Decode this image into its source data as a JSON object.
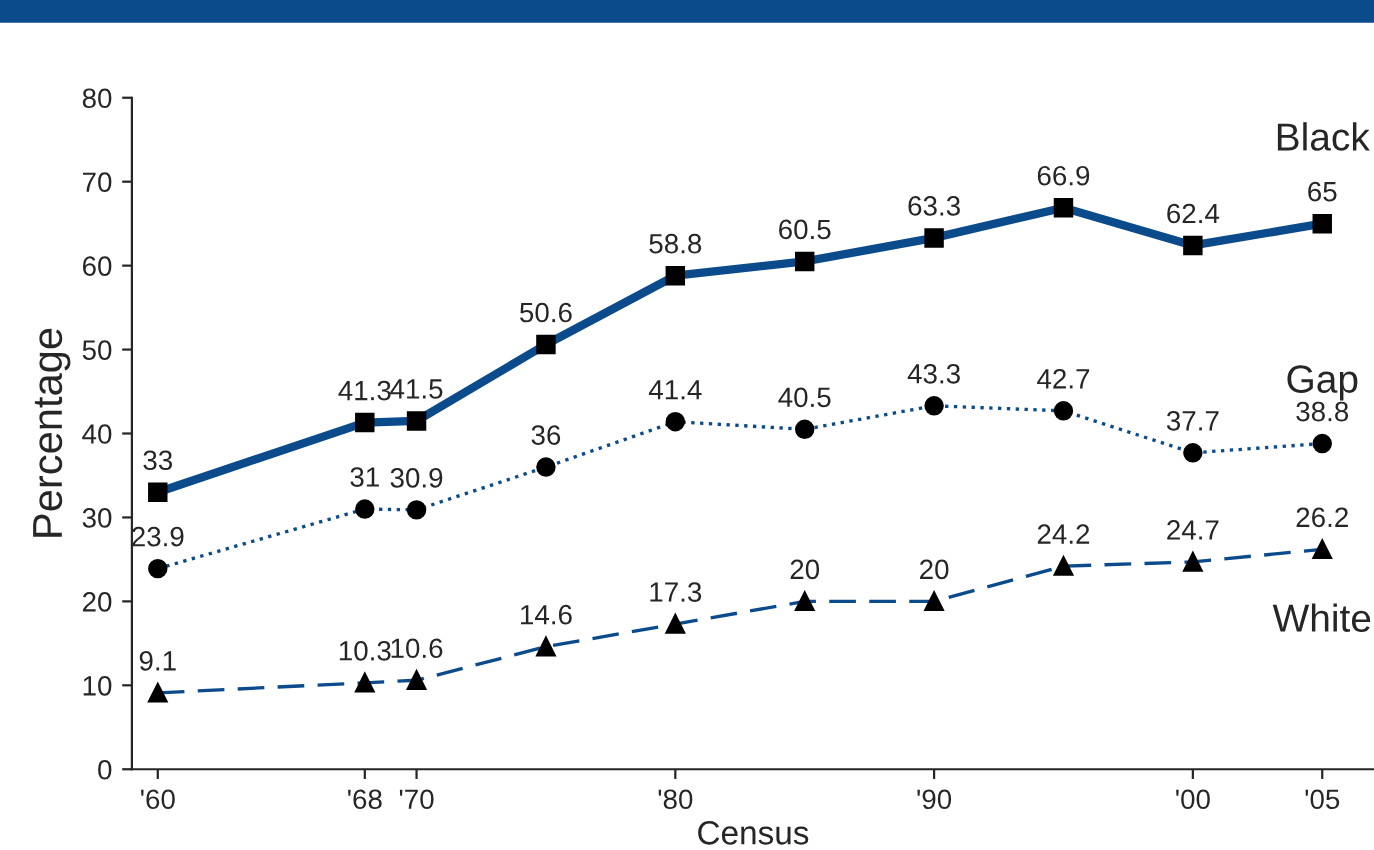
{
  "chart_data": {
    "type": "line",
    "xlabel": "Census",
    "ylabel": "Percentage",
    "x": [
      1960,
      1968,
      1970,
      1975,
      1980,
      1985,
      1990,
      1995,
      2000,
      2005
    ],
    "series": [
      {
        "name": "Black",
        "color": "#0b4a8b",
        "values": [
          33,
          41.3,
          41.5,
          50.6,
          58.8,
          60.5,
          63.3,
          66.9,
          62.4,
          65
        ],
        "marker": "square",
        "line_style": "solid"
      },
      {
        "name": "Gap",
        "color": "#0b4a8b",
        "values": [
          23.9,
          31,
          30.9,
          36,
          41.4,
          40.5,
          43.3,
          42.7,
          37.7,
          38.8
        ],
        "marker": "circle",
        "line_style": "dotted"
      },
      {
        "name": "White",
        "color": "#0b4a8b",
        "values": [
          9.1,
          10.3,
          10.6,
          14.6,
          17.3,
          20,
          20,
          24.2,
          24.7,
          26.2
        ],
        "marker": "triangle",
        "line_style": "dashed"
      }
    ],
    "xlim": [
      1959,
      2007
    ],
    "xticks": [
      {
        "value": 1960,
        "label": "'60"
      },
      {
        "value": 1968,
        "label": "'68"
      },
      {
        "value": 1970,
        "label": "'70"
      },
      {
        "value": 1980,
        "label": "'80"
      },
      {
        "value": 1990,
        "label": "'90"
      },
      {
        "value": 2000,
        "label": "'00"
      },
      {
        "value": 2005,
        "label": "'05"
      }
    ],
    "ylim": [
      0,
      80
    ],
    "yticks": [
      0,
      10,
      20,
      30,
      40,
      50,
      60,
      70,
      80
    ],
    "data_labels": true,
    "grid": false,
    "legend": false
  }
}
